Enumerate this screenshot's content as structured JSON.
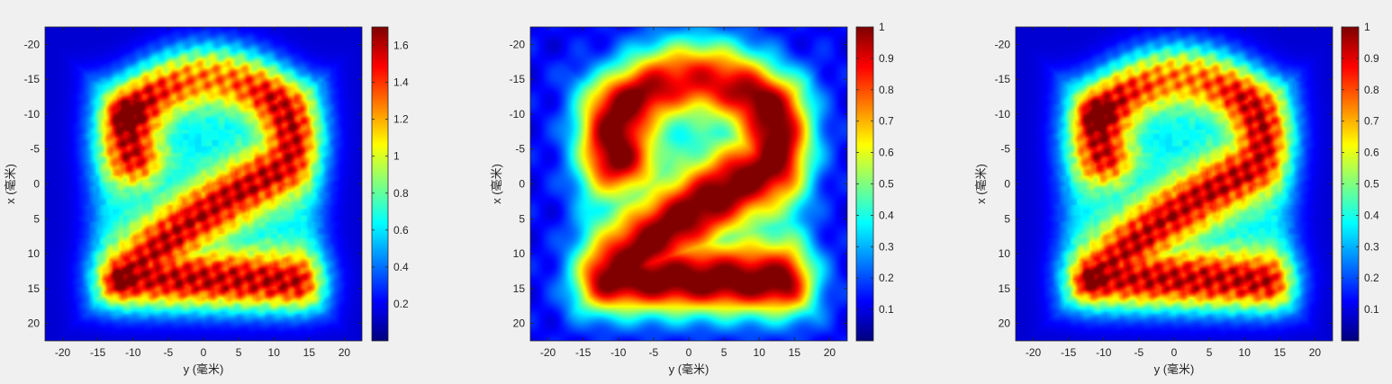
{
  "chart_data": [
    {
      "type": "heatmap",
      "xlabel": "y (毫米)",
      "ylabel": "x (毫米)",
      "x_ticks": [
        -20,
        -15,
        -10,
        -5,
        0,
        5,
        10,
        15,
        20
      ],
      "y_ticks": [
        -20,
        -15,
        -10,
        -5,
        0,
        5,
        10,
        15,
        20
      ],
      "xlim": [
        -22.5,
        22.5
      ],
      "ylim": [
        -22.5,
        22.5
      ],
      "y_reversed": true,
      "colormap": "jet",
      "clim": [
        0,
        1.7
      ],
      "colorbar_ticks": [
        0.2,
        0.4,
        0.6,
        0.8,
        1,
        1.2,
        1.4,
        1.6
      ],
      "colorbar_tick_labels": [
        "0.2",
        "0.4",
        "0.6",
        "0.8",
        "1",
        "1.2",
        "1.4",
        "1.6"
      ],
      "content": "digit 2 intensity pattern with speckle (noisy reconstruction)"
    },
    {
      "type": "heatmap",
      "xlabel": "y (毫米)",
      "ylabel": "x (毫米)",
      "x_ticks": [
        -20,
        -15,
        -10,
        -5,
        0,
        5,
        10,
        15,
        20
      ],
      "y_ticks": [
        -20,
        -15,
        -10,
        -5,
        0,
        5,
        10,
        15,
        20
      ],
      "xlim": [
        -22.5,
        22.5
      ],
      "ylim": [
        -22.5,
        22.5
      ],
      "y_reversed": true,
      "colormap": "jet",
      "clim": [
        0,
        1
      ],
      "colorbar_ticks": [
        0.1,
        0.2,
        0.3,
        0.4,
        0.5,
        0.6,
        0.7,
        0.8,
        0.9,
        1
      ],
      "colorbar_tick_labels": [
        "0.1",
        "0.2",
        "0.3",
        "0.4",
        "0.5",
        "0.6",
        "0.7",
        "0.8",
        "0.9",
        "1"
      ],
      "content": "digit 2 intensity pattern, smooth (target)"
    },
    {
      "type": "heatmap",
      "xlabel": "y (毫米)",
      "ylabel": "x (毫米)",
      "x_ticks": [
        -20,
        -15,
        -10,
        -5,
        0,
        5,
        10,
        15,
        20
      ],
      "y_ticks": [
        -20,
        -15,
        -10,
        -5,
        0,
        5,
        10,
        15,
        20
      ],
      "xlim": [
        -22.5,
        22.5
      ],
      "ylim": [
        -22.5,
        22.5
      ],
      "y_reversed": true,
      "colormap": "jet",
      "clim": [
        0,
        1
      ],
      "colorbar_ticks": [
        0.1,
        0.2,
        0.3,
        0.4,
        0.5,
        0.6,
        0.7,
        0.8,
        0.9,
        1
      ],
      "colorbar_tick_labels": [
        "0.1",
        "0.2",
        "0.3",
        "0.4",
        "0.5",
        "0.6",
        "0.7",
        "0.8",
        "0.9",
        "1"
      ],
      "content": "digit 2 intensity pattern with speckle (normalized reconstruction)"
    }
  ]
}
